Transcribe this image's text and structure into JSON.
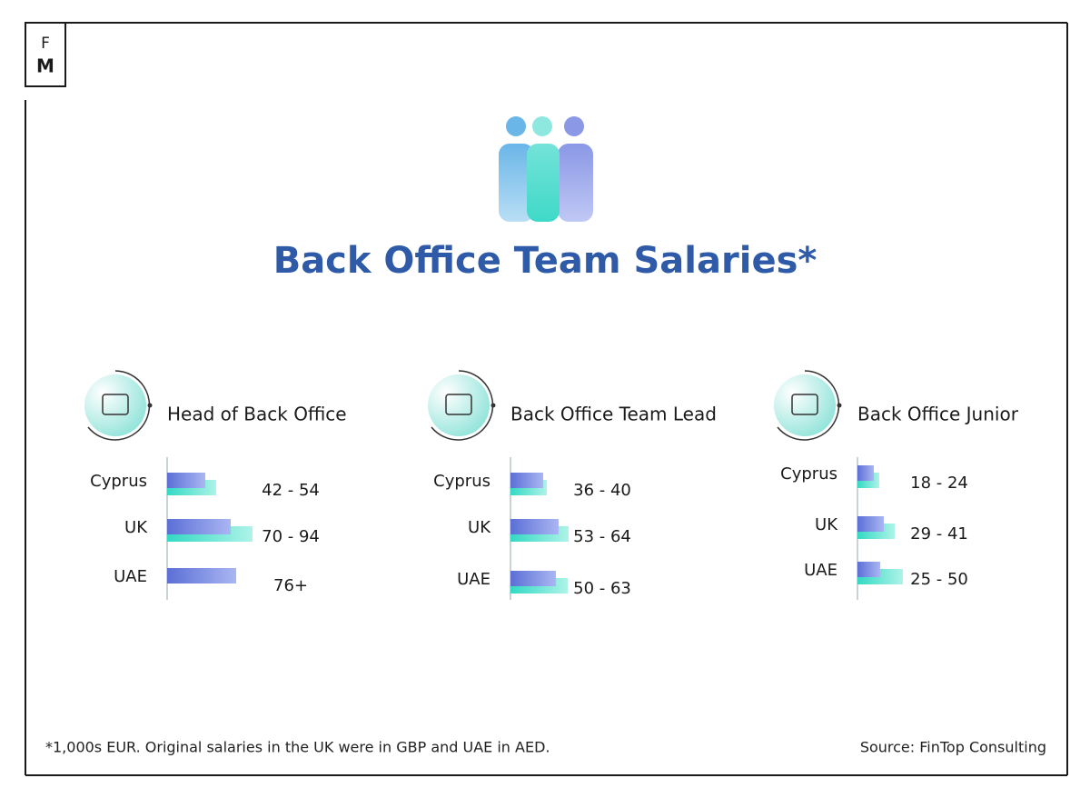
{
  "header": {
    "logo_top": "F",
    "logo_bottom": "M",
    "title": "Back Office Team Salaries*"
  },
  "footer": {
    "note": "*1,000s EUR. Original salaries in the UK were in GBP and UAE in AED.",
    "source": "Source: FinTop Consulting"
  },
  "chart_data": [
    {
      "type": "bar",
      "orientation": "horizontal",
      "title": "Head of Back Office",
      "categories": [
        "Cyprus",
        "UK",
        "UAE"
      ],
      "series": [
        {
          "color": "#5b6fd6",
          "values": [
            42,
            70,
            76
          ]
        },
        {
          "color": "#33d9c4",
          "values": [
            54,
            94,
            null
          ]
        }
      ],
      "value_labels": [
        "42 - 54",
        "70 - 94",
        "76+"
      ]
    },
    {
      "type": "bar",
      "orientation": "horizontal",
      "title": "Back Office Team Lead",
      "categories": [
        "Cyprus",
        "UK",
        "UAE"
      ],
      "series": [
        {
          "color": "#5b6fd6",
          "values": [
            36,
            53,
            50
          ]
        },
        {
          "color": "#33d9c4",
          "values": [
            40,
            64,
            63
          ]
        }
      ],
      "value_labels": [
        "36 - 40",
        "53 - 64",
        "50 - 63"
      ]
    },
    {
      "type": "bar",
      "orientation": "horizontal",
      "title": "Back Office Junior",
      "categories": [
        "Cyprus",
        "UK",
        "UAE"
      ],
      "series": [
        {
          "color": "#5b6fd6",
          "values": [
            18,
            29,
            25
          ]
        },
        {
          "color": "#33d9c4",
          "values": [
            24,
            41,
            50
          ]
        }
      ],
      "value_labels": [
        "18 - 24",
        "29 - 41",
        "25 - 50"
      ]
    }
  ]
}
